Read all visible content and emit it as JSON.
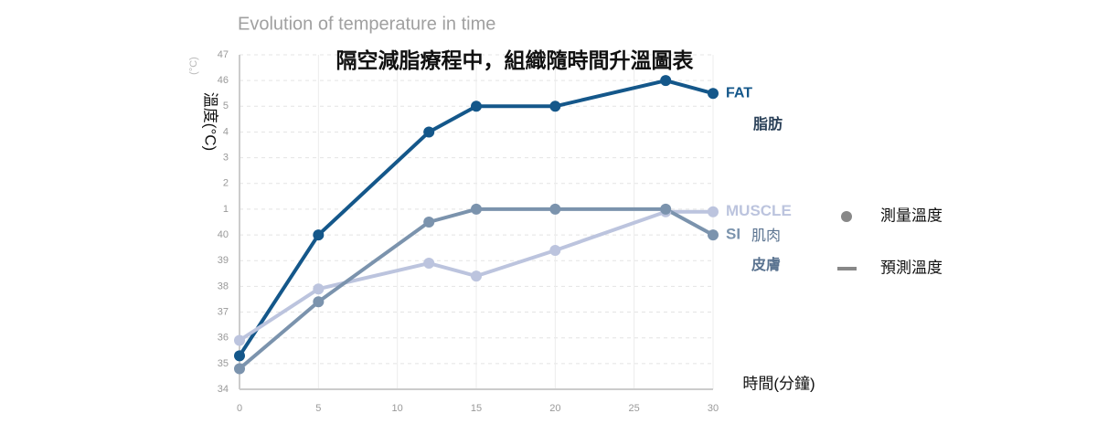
{
  "chart_data": {
    "type": "line",
    "title": "隔空減脂療程中，組織隨時間升溫圖表",
    "subtitle": "Evolution of temperature in time",
    "y_axis_label": "溫度(°C)",
    "y_axis_label_original": "(°C)",
    "x_axis_label": "時間(分鐘)",
    "x": [
      0,
      5,
      12,
      15,
      20,
      27,
      30
    ],
    "series": [
      {
        "name": "FAT",
        "color": "#14578a",
        "values": [
          35.3,
          40,
          44,
          45,
          45,
          46,
          45.5
        ]
      },
      {
        "name": "MUSCLE",
        "color": "#bcc4de",
        "values": [
          35.9,
          37.9,
          38.9,
          38.4,
          39.4,
          40.9,
          40.9
        ]
      },
      {
        "name": "SI",
        "color": "#7b93ad",
        "values": [
          34.8,
          37.4,
          40.5,
          41,
          41,
          41,
          40
        ]
      }
    ],
    "annotations": [
      "脂肪",
      "肌肉",
      "皮膚"
    ],
    "legend": [
      "測量溫度",
      "預測溫度"
    ],
    "xlim": [
      0,
      30
    ],
    "xticks": [
      0,
      5,
      10,
      15,
      20,
      25,
      30
    ],
    "ylim": [
      34,
      47
    ],
    "yticks": [
      34,
      35,
      36,
      37,
      38,
      39,
      40,
      {
        "value": 41,
        "label": "1"
      },
      {
        "value": 42,
        "label": "2"
      },
      {
        "value": 43,
        "label": "3"
      },
      {
        "value": 44,
        "label": "4"
      },
      {
        "value": 45,
        "label": "5"
      },
      46,
      47
    ],
    "grid": true
  }
}
